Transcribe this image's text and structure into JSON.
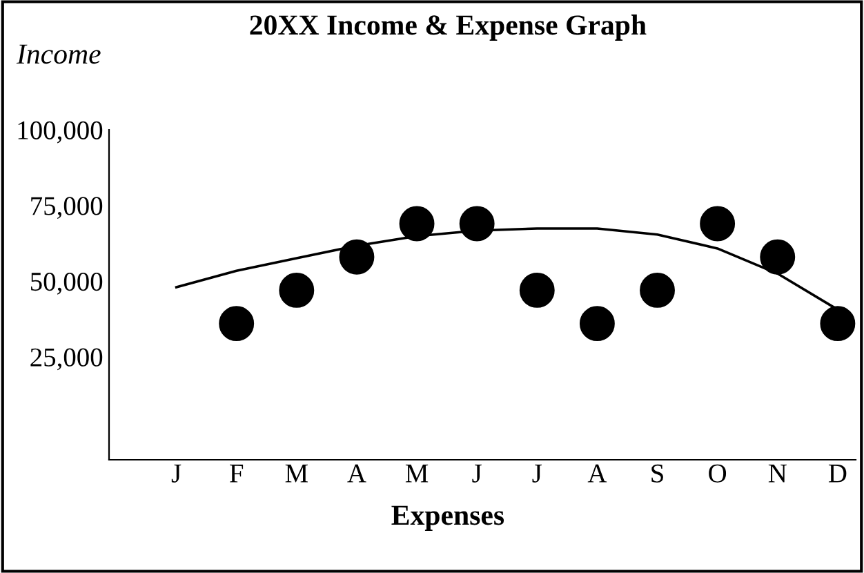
{
  "chart_data": {
    "type": "scatter",
    "title": "20XX Income & Expense Graph",
    "xlabel": "Expenses",
    "ylabel": "Income",
    "categories": [
      "J",
      "F",
      "M",
      "A",
      "M",
      "J",
      "J",
      "A",
      "S",
      "O",
      "N",
      "D"
    ],
    "ylim": [
      -9000,
      100000
    ],
    "yticks": [
      {
        "value": 25000,
        "label": "25,000"
      },
      {
        "value": 50000,
        "label": "50,000"
      },
      {
        "value": 75000,
        "label": "75,000"
      },
      {
        "value": 100000,
        "label": "100,000"
      }
    ],
    "grid": false,
    "legend": false,
    "series": [
      {
        "color": "#000000",
        "marker": "circle",
        "values": [
          null,
          36000,
          47000,
          58000,
          69000,
          69000,
          47000,
          36000,
          47000,
          69000,
          58000,
          36000
        ]
      },
      {
        "type": "line",
        "color": "#000000",
        "marker": "none",
        "values": [
          48000,
          53400,
          57600,
          61700,
          64900,
          66700,
          67400,
          67400,
          65400,
          60800,
          52500,
          40600
        ]
      }
    ]
  }
}
